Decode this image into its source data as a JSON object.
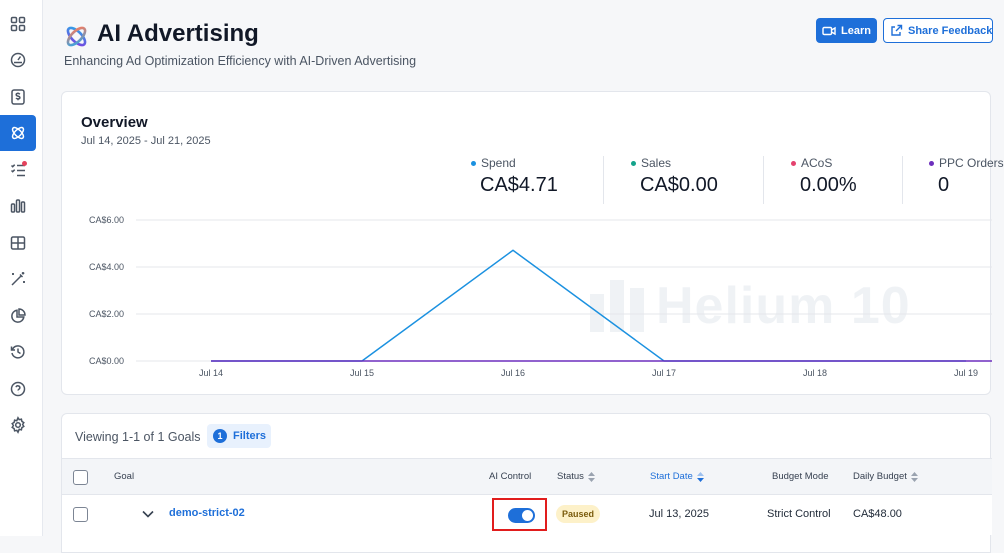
{
  "header": {
    "title": "AI Advertising",
    "subtitle": "Enhancing Ad Optimization Efficiency with AI-Driven Advertising",
    "learn_label": "Learn",
    "feedback_label": "Share Feedback"
  },
  "sidebar": {
    "items": [
      {
        "icon": "grid-icon"
      },
      {
        "icon": "dashboard-gauge-icon"
      },
      {
        "icon": "dollar-document-icon"
      },
      {
        "icon": "atom-icon",
        "active": true
      },
      {
        "icon": "checklist-icon",
        "badge": true
      },
      {
        "icon": "bar-chart-icon"
      },
      {
        "icon": "table-icon"
      },
      {
        "icon": "magic-wand-icon"
      },
      {
        "icon": "pie-chart-icon"
      },
      {
        "icon": "history-icon"
      },
      {
        "icon": "help-icon"
      },
      {
        "icon": "settings-icon"
      }
    ]
  },
  "overview": {
    "title": "Overview",
    "date_range": "Jul 14, 2025 - Jul 21, 2025",
    "metrics": [
      {
        "label": "Spend",
        "value": "CA$4.71",
        "color": "#1b91e0"
      },
      {
        "label": "Sales",
        "value": "CA$0.00",
        "color": "#14a38b"
      },
      {
        "label": "ACoS",
        "value": "0.00%",
        "color": "#e4416e"
      },
      {
        "label": "PPC Orders",
        "value": "0",
        "color": "#6d2fbd"
      }
    ],
    "watermark": "Helium 10"
  },
  "chart_data": {
    "type": "line",
    "x": [
      "Jul 14",
      "Jul 15",
      "Jul 16",
      "Jul 17",
      "Jul 18",
      "Jul 19"
    ],
    "y_ticks": [
      "CA$0.00",
      "CA$2.00",
      "CA$4.00",
      "CA$6.00"
    ],
    "ylim": [
      0,
      6
    ],
    "grid": true,
    "series": [
      {
        "name": "Spend",
        "color": "#1b91e0",
        "values": [
          0,
          0,
          4.71,
          0,
          0,
          0
        ]
      },
      {
        "name": "PPC Orders",
        "color": "#6d2fbd",
        "values": [
          0,
          0,
          0,
          0,
          0,
          0
        ]
      }
    ]
  },
  "goals": {
    "viewing_text": "Viewing 1-1 of 1 Goals",
    "filters_count": "1",
    "filters_label": "Filters",
    "columns": {
      "goal": "Goal",
      "ai_control": "AI Control",
      "status": "Status",
      "start_date": "Start Date",
      "budget_mode": "Budget Mode",
      "daily_budget": "Daily Budget"
    },
    "rows": [
      {
        "goal": "demo-strict-02",
        "ai_control": true,
        "status": "Paused",
        "start_date": "Jul 13, 2025",
        "budget_mode": "Strict Control",
        "daily_budget": "CA$48.00"
      }
    ]
  }
}
